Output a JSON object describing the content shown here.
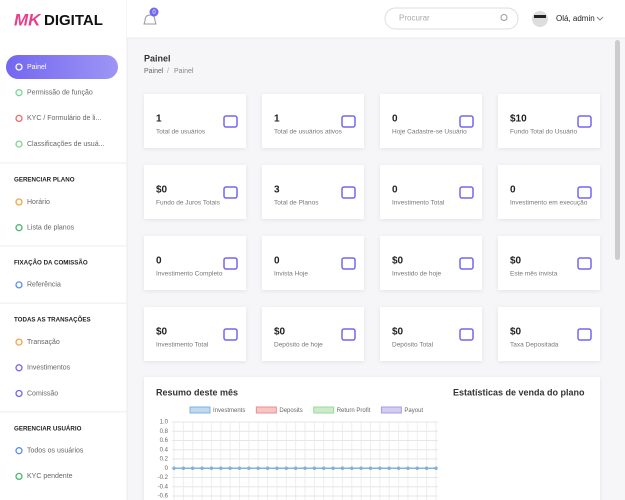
{
  "brand": {
    "mark": "MK",
    "name": "DIGITAL"
  },
  "header": {
    "notifications": "0",
    "search_placeholder": "Procurar",
    "user": "Olá, admin"
  },
  "sidebar": {
    "items": [
      "Painel",
      "Permissão de função",
      "KYC / Formulário de li...",
      "Classificações de usuá..."
    ],
    "sections": [
      {
        "title": "GERENCIAR PLANO",
        "items": [
          "Horário",
          "Lista de planos"
        ]
      },
      {
        "title": "FIXAÇÃO DA COMISSÃO",
        "items": [
          "Referência"
        ]
      },
      {
        "title": "TODAS AS TRANSAÇÕES",
        "items": [
          "Transação",
          "Investimentos",
          "Comissão"
        ]
      },
      {
        "title": "GERENCIAR USUÁRIO",
        "items": [
          "Todos os usuários",
          "KYC pendente"
        ]
      }
    ]
  },
  "page": {
    "title": "Painel",
    "breadcrumb": [
      "Painel",
      "Painel"
    ]
  },
  "cards": [
    {
      "value": "1",
      "label": "Total de usuários"
    },
    {
      "value": "1",
      "label": "Total de usuários ativos"
    },
    {
      "value": "0",
      "label": "Hoje Cadastre-se Usuário"
    },
    {
      "value": "$10",
      "label": "Fundo Total do Usuário"
    },
    {
      "value": "$0",
      "label": "Fundo de Juros Totais"
    },
    {
      "value": "3",
      "label": "Total de Planos"
    },
    {
      "value": "0",
      "label": "Investimento Total"
    },
    {
      "value": "0",
      "label": "Investimento em execução"
    },
    {
      "value": "0",
      "label": "Investimento Completo"
    },
    {
      "value": "0",
      "label": "Invista Hoje"
    },
    {
      "value": "$0",
      "label": "Investido de hoje"
    },
    {
      "value": "$0",
      "label": "Este mês invista"
    },
    {
      "value": "$0",
      "label": "Investimento Total"
    },
    {
      "value": "$0",
      "label": "Depósito de hoje"
    },
    {
      "value": "$0",
      "label": "Depósito Total"
    },
    {
      "value": "$0",
      "label": "Taxa Depositada"
    }
  ],
  "chart_data": {
    "type": "line",
    "title": "Resumo deste mês",
    "x": [
      null,
      null,
      null,
      null,
      null,
      null,
      null,
      null,
      null,
      null,
      null,
      null,
      null,
      null,
      null,
      null,
      null,
      null,
      null,
      null,
      null,
      null,
      null,
      null,
      null,
      null,
      null,
      null,
      null
    ],
    "series": [
      {
        "name": "Investments",
        "color": "#7fb3e0",
        "values": [
          0,
          0,
          0,
          0,
          0,
          0,
          0,
          0,
          0,
          0,
          0,
          0,
          0,
          0,
          0,
          0,
          0,
          0,
          0,
          0,
          0,
          0,
          0,
          0,
          0,
          0,
          0,
          0,
          0
        ]
      },
      {
        "name": "Deposits",
        "color": "#f08c8c",
        "values": [
          0,
          0,
          0,
          0,
          0,
          0,
          0,
          0,
          0,
          0,
          0,
          0,
          0,
          0,
          0,
          0,
          0,
          0,
          0,
          0,
          0,
          0,
          0,
          0,
          0,
          0,
          0,
          0,
          0
        ]
      },
      {
        "name": "Return Profit",
        "color": "#9ad89a",
        "values": [
          0,
          0,
          0,
          0,
          0,
          0,
          0,
          0,
          0,
          0,
          0,
          0,
          0,
          0,
          0,
          0,
          0,
          0,
          0,
          0,
          0,
          0,
          0,
          0,
          0,
          0,
          0,
          0,
          0
        ]
      },
      {
        "name": "Payout",
        "color": "#a99be6",
        "values": [
          0,
          0,
          0,
          0,
          0,
          0,
          0,
          0,
          0,
          0,
          0,
          0,
          0,
          0,
          0,
          0,
          0,
          0,
          0,
          0,
          0,
          0,
          0,
          0,
          0,
          0,
          0,
          0,
          0
        ]
      }
    ],
    "ylim": [
      -1,
      1
    ],
    "yticks": [
      {
        "value": 1,
        "label": "1.0"
      },
      0.8,
      0.6,
      0.4,
      0.2,
      0,
      -0.2,
      -0.4,
      -0.6
    ],
    "grid": true
  },
  "side_panel": {
    "title": "Estatísticas de venda do plano"
  }
}
